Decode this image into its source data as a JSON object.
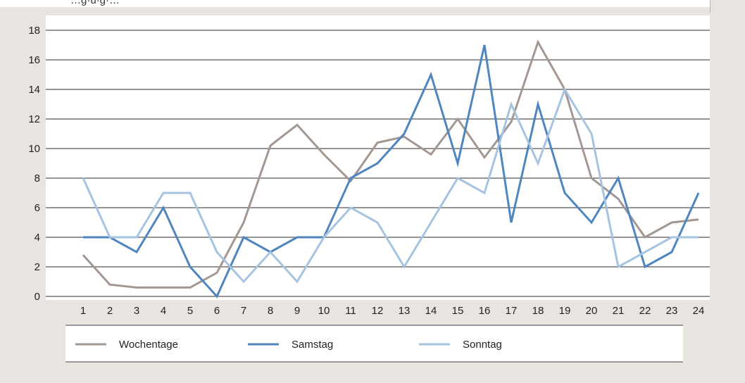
{
  "page": {
    "top_caption": "…g·ü·g·…",
    "background": "#e8e4df"
  },
  "chart_data": {
    "type": "line",
    "title": "",
    "xlabel": "",
    "ylabel": "",
    "x": [
      "1",
      "2",
      "3",
      "4",
      "5",
      "6",
      "7",
      "8",
      "9",
      "10",
      "11",
      "12",
      "13",
      "14",
      "15",
      "16",
      "17",
      "18",
      "19",
      "20",
      "21",
      "22",
      "23",
      "24"
    ],
    "ylim": [
      0,
      18
    ],
    "yticks": [
      0,
      2,
      4,
      6,
      8,
      10,
      12,
      14,
      16,
      18
    ],
    "grid": true,
    "legend": "bottom",
    "series": [
      {
        "name": "Wochentage",
        "color": "#a39791",
        "values": [
          2.8,
          0.8,
          0.6,
          0.6,
          0.6,
          1.6,
          5.0,
          10.2,
          11.6,
          9.6,
          7.8,
          10.4,
          10.8,
          9.6,
          12.0,
          9.4,
          11.8,
          17.2,
          14.0,
          8.0,
          6.6,
          4.0,
          5.0,
          5.2
        ]
      },
      {
        "name": "Samstag",
        "color": "#4f86c0",
        "values": [
          4,
          4,
          3,
          6,
          2,
          0,
          4,
          3,
          4,
          4,
          8,
          9,
          11,
          15,
          9,
          17,
          5,
          13,
          7,
          5,
          8,
          2,
          3,
          7
        ]
      },
      {
        "name": "Sonntag",
        "color": "#a6c3e0",
        "values": [
          8,
          4,
          4,
          7,
          7,
          3,
          1,
          3,
          1,
          4,
          6,
          5,
          2,
          5,
          8,
          7,
          13,
          9,
          14,
          11,
          2,
          3,
          4,
          4
        ]
      }
    ]
  }
}
